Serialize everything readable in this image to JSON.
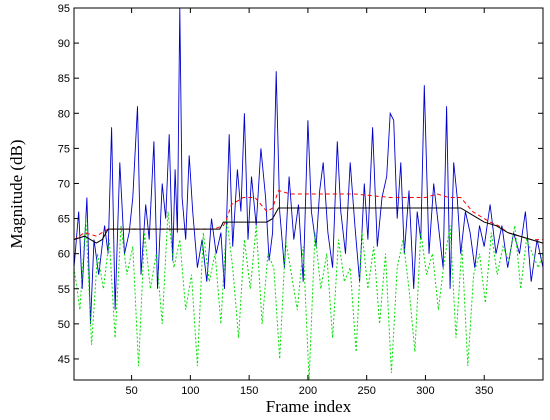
{
  "chart_data": {
    "type": "line",
    "xlabel": "Frame index",
    "ylabel": "Magnitude (dB)",
    "xlim": [
      1,
      400
    ],
    "ylim": [
      42,
      95
    ],
    "xticks": [
      50,
      100,
      150,
      200,
      250,
      300,
      350
    ],
    "yticks": [
      45,
      50,
      55,
      60,
      65,
      70,
      75,
      80,
      85,
      90,
      95
    ],
    "grid": false,
    "legend": "none",
    "colors": {
      "signal": "#0000cc",
      "dotted": "#00dd00",
      "red_dashed": "#ff0000",
      "black": "#000000"
    },
    "series": [
      {
        "style": "solid",
        "color": "#0000cc",
        "x": [
          1,
          5,
          8,
          12,
          15,
          18,
          22,
          27,
          30,
          33,
          36,
          40,
          44,
          48,
          51,
          55,
          58,
          62,
          65,
          69,
          72,
          76,
          79,
          82,
          85,
          87,
          89,
          91,
          93,
          96,
          99,
          102,
          106,
          110,
          114,
          118,
          122,
          126,
          129,
          133,
          136,
          140,
          143,
          146,
          149,
          152,
          156,
          160,
          164,
          167,
          170,
          173,
          176,
          180,
          184,
          188,
          192,
          196,
          200,
          203,
          207,
          210,
          213,
          217,
          221,
          225,
          228,
          232,
          236,
          240,
          244,
          248,
          251,
          255,
          259,
          263,
          267,
          270,
          273,
          276,
          279,
          282,
          286,
          290,
          293,
          296,
          299,
          303,
          307,
          311,
          315,
          318,
          321,
          324,
          327,
          330,
          334,
          338,
          342,
          346,
          350,
          355,
          360,
          365,
          370,
          375,
          380,
          385,
          390,
          395,
          400
        ],
        "y": [
          58,
          66,
          55,
          68,
          50,
          62,
          57,
          64,
          60,
          78,
          52,
          73,
          60,
          63,
          68,
          81,
          57,
          67,
          62,
          76,
          55,
          70,
          65,
          77,
          59,
          72,
          63,
          95,
          68,
          62,
          74,
          66,
          58,
          62,
          56,
          65,
          60,
          63,
          55,
          77,
          61,
          72,
          66,
          80,
          62,
          71,
          64,
          75,
          68,
          59,
          63,
          86,
          66,
          58,
          71,
          62,
          67,
          56,
          79,
          66,
          61,
          69,
          73,
          63,
          58,
          76,
          66,
          60,
          73,
          64,
          56,
          70,
          62,
          78,
          61,
          68,
          71,
          80,
          79,
          65,
          73,
          60,
          69,
          55,
          66,
          62,
          84,
          60,
          70,
          64,
          58,
          81,
          55,
          73,
          68,
          60,
          66,
          63,
          58,
          64,
          61,
          67,
          60,
          64,
          58,
          63,
          60,
          66,
          56,
          62,
          58
        ]
      },
      {
        "style": "dotted",
        "color": "#00dd00",
        "x": [
          1,
          6,
          11,
          16,
          21,
          26,
          31,
          36,
          41,
          46,
          51,
          56,
          61,
          66,
          71,
          76,
          81,
          86,
          91,
          96,
          101,
          106,
          111,
          116,
          121,
          126,
          131,
          136,
          141,
          146,
          151,
          156,
          161,
          166,
          171,
          176,
          181,
          186,
          191,
          196,
          201,
          206,
          211,
          216,
          221,
          226,
          231,
          236,
          241,
          246,
          251,
          256,
          261,
          266,
          271,
          276,
          281,
          286,
          291,
          296,
          301,
          306,
          311,
          316,
          321,
          326,
          331,
          336,
          341,
          346,
          351,
          356,
          361,
          366,
          371,
          376,
          381,
          386,
          391,
          396,
          400
        ],
        "y": [
          58,
          52,
          65,
          47,
          60,
          55,
          62,
          48,
          64,
          57,
          61,
          44,
          63,
          55,
          60,
          50,
          66,
          58,
          62,
          52,
          57,
          44,
          63,
          56,
          60,
          50,
          65,
          58,
          48,
          62,
          55,
          64,
          50,
          60,
          58,
          45,
          62,
          57,
          52,
          61,
          42,
          63,
          55,
          60,
          48,
          62,
          56,
          58,
          46,
          63,
          55,
          61,
          50,
          60,
          43,
          58,
          62,
          55,
          46,
          63,
          57,
          60,
          52,
          59,
          64,
          48,
          61,
          44,
          57,
          60,
          53,
          63,
          57,
          61,
          59,
          64,
          55,
          62,
          60,
          58,
          60
        ]
      },
      {
        "style": "dashed",
        "color": "#ff0000",
        "x": [
          1,
          10,
          20,
          30,
          60,
          90,
          120,
          128,
          130,
          135,
          145,
          155,
          165,
          170,
          175,
          185,
          195,
          215,
          240,
          270,
          300,
          310,
          320,
          330,
          340,
          350,
          355,
          362,
          370,
          380,
          390,
          400
        ],
        "y": [
          62,
          63,
          62.5,
          63.5,
          63.5,
          63.5,
          63.5,
          64,
          64.5,
          67,
          68,
          68,
          66,
          66.5,
          69,
          68.5,
          68.5,
          68.5,
          68.5,
          68,
          68,
          68.5,
          68,
          68,
          66,
          65,
          64.5,
          64,
          63,
          62.5,
          62,
          62
        ]
      },
      {
        "style": "solid",
        "color": "#000000",
        "x": [
          1,
          10,
          20,
          25,
          30,
          60,
          90,
          110,
          125,
          128,
          140,
          150,
          165,
          170,
          175,
          200,
          250,
          300,
          320,
          330,
          340,
          345,
          350,
          360,
          370,
          380,
          390,
          400
        ],
        "y": [
          62,
          62.5,
          61.5,
          62,
          63.5,
          63.5,
          63.5,
          63.5,
          63.5,
          64.5,
          64.5,
          64.5,
          64.5,
          65,
          66.5,
          66.5,
          66.5,
          66.5,
          66.5,
          66.5,
          65.5,
          65,
          64.5,
          64,
          63,
          62.5,
          62,
          61.5
        ]
      }
    ]
  }
}
